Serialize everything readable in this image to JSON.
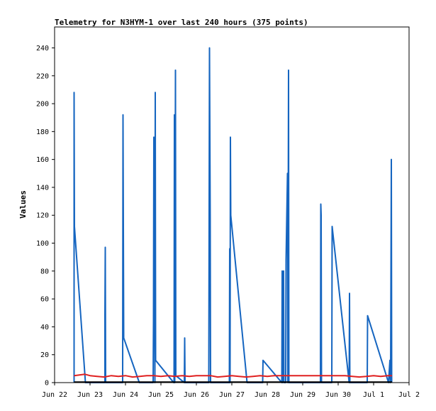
{
  "chart_data": {
    "type": "line",
    "title": "Telemetry for N3HYM-1 over last 240 hours (375 points)",
    "xlabel": "",
    "ylabel": "Values",
    "x_ticks": [
      {
        "label": "Jun 22",
        "day": 0
      },
      {
        "label": "Jun 23",
        "day": 1
      },
      {
        "label": "Jun 24",
        "day": 2
      },
      {
        "label": "Jun 25",
        "day": 3
      },
      {
        "label": "Jun 26",
        "day": 4
      },
      {
        "label": "Jun 27",
        "day": 5
      },
      {
        "label": "Jun 28",
        "day": 6
      },
      {
        "label": "Jun 29",
        "day": 7
      },
      {
        "label": "Jun 30",
        "day": 8
      },
      {
        "label": "Jul 1",
        "day": 9
      },
      {
        "label": "Jul 2",
        "day": 10
      }
    ],
    "y_ticks": [
      0,
      20,
      40,
      60,
      80,
      100,
      120,
      140,
      160,
      180,
      200,
      220,
      240
    ],
    "xlim": [
      0,
      10
    ],
    "ylim": [
      0,
      255
    ],
    "grid": false,
    "legend": "none",
    "series": [
      {
        "color": "#1565c0",
        "points": [
          [
            0.55,
            0
          ],
          [
            0.55,
            208
          ],
          [
            0.56,
            112
          ],
          [
            0.87,
            0
          ],
          [
            1.42,
            0
          ],
          [
            1.42,
            48
          ],
          [
            1.43,
            97
          ],
          [
            1.44,
            0
          ],
          [
            1.92,
            0
          ],
          [
            1.93,
            192
          ],
          [
            1.94,
            112
          ],
          [
            1.95,
            32
          ],
          [
            2.39,
            0
          ],
          [
            2.78,
            0
          ],
          [
            2.79,
            44
          ],
          [
            2.8,
            176
          ],
          [
            2.81,
            132
          ],
          [
            2.83,
            0
          ],
          [
            2.84,
            208
          ],
          [
            2.85,
            16
          ],
          [
            3.36,
            0
          ],
          [
            3.37,
            0
          ],
          [
            3.38,
            192
          ],
          [
            3.39,
            0
          ],
          [
            3.41,
            224
          ],
          [
            3.42,
            5
          ],
          [
            3.66,
            0
          ],
          [
            3.67,
            32
          ],
          [
            3.68,
            0
          ],
          [
            4.35,
            0
          ],
          [
            4.37,
            240
          ],
          [
            4.39,
            120
          ],
          [
            4.4,
            0
          ],
          [
            4.93,
            0
          ],
          [
            4.94,
            96
          ],
          [
            4.95,
            0
          ],
          [
            4.96,
            176
          ],
          [
            4.97,
            120
          ],
          [
            5.43,
            0
          ],
          [
            5.87,
            0
          ],
          [
            5.88,
            16
          ],
          [
            6.41,
            0
          ],
          [
            6.42,
            80
          ],
          [
            6.43,
            0
          ],
          [
            6.46,
            80
          ],
          [
            6.47,
            0
          ],
          [
            6.52,
            0
          ],
          [
            6.53,
            88
          ],
          [
            6.57,
            150
          ],
          [
            6.58,
            0
          ],
          [
            6.6,
            224
          ],
          [
            6.61,
            0
          ],
          [
            7.5,
            0
          ],
          [
            7.51,
            128
          ],
          [
            7.52,
            120
          ],
          [
            7.53,
            0
          ],
          [
            7.82,
            0
          ],
          [
            7.83,
            112
          ],
          [
            8.31,
            0
          ],
          [
            8.32,
            64
          ],
          [
            8.33,
            0
          ],
          [
            8.82,
            0
          ],
          [
            8.83,
            48
          ],
          [
            9.42,
            0
          ],
          [
            9.46,
            16
          ],
          [
            9.47,
            0
          ],
          [
            9.48,
            8
          ],
          [
            9.5,
            160
          ],
          [
            9.51,
            0
          ]
        ]
      },
      {
        "color": "#e02020",
        "points": [
          [
            0.55,
            5
          ],
          [
            0.7,
            5.5
          ],
          [
            0.85,
            6
          ],
          [
            1.0,
            5
          ],
          [
            1.2,
            4.5
          ],
          [
            1.4,
            4
          ],
          [
            1.6,
            5
          ],
          [
            1.8,
            4.5
          ],
          [
            2.0,
            5
          ],
          [
            2.2,
            4
          ],
          [
            2.4,
            4.5
          ],
          [
            2.6,
            5
          ],
          [
            2.8,
            5
          ],
          [
            3.0,
            4.5
          ],
          [
            3.2,
            5
          ],
          [
            3.4,
            4.5
          ],
          [
            3.6,
            5
          ],
          [
            3.8,
            4.5
          ],
          [
            4.0,
            5
          ],
          [
            4.2,
            5
          ],
          [
            4.4,
            5
          ],
          [
            4.6,
            4
          ],
          [
            4.8,
            4.5
          ],
          [
            5.0,
            5
          ],
          [
            5.2,
            4.5
          ],
          [
            5.4,
            4
          ],
          [
            5.6,
            4.5
          ],
          [
            5.8,
            5
          ],
          [
            6.0,
            4.5
          ],
          [
            6.2,
            5
          ],
          [
            6.4,
            5
          ],
          [
            6.6,
            5
          ],
          [
            6.8,
            5
          ],
          [
            7.0,
            5
          ],
          [
            7.2,
            5
          ],
          [
            7.4,
            5
          ],
          [
            7.6,
            5
          ],
          [
            7.8,
            5
          ],
          [
            8.0,
            5
          ],
          [
            8.2,
            5
          ],
          [
            8.4,
            4.5
          ],
          [
            8.6,
            4
          ],
          [
            8.8,
            4.5
          ],
          [
            9.0,
            5
          ],
          [
            9.2,
            4.5
          ],
          [
            9.4,
            5
          ],
          [
            9.52,
            5
          ]
        ]
      },
      {
        "color": "#000000",
        "points": [
          [
            0.55,
            0.5
          ],
          [
            9.52,
            0.5
          ]
        ]
      }
    ]
  }
}
